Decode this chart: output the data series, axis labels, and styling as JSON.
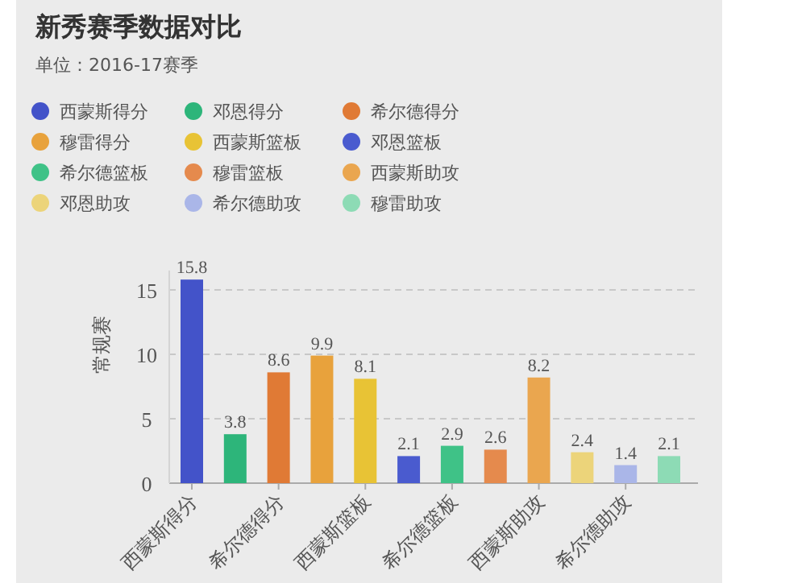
{
  "chart_data": {
    "type": "bar",
    "title": "新秀赛季数据对比",
    "subtitle": "单位：2016-17赛季",
    "ylabel": "常规赛",
    "categories": [
      "西蒙斯得分",
      null,
      "希尔德得分",
      null,
      "西蒙斯篮板",
      null,
      "希尔德篮板",
      null,
      "西蒙斯助攻",
      null,
      "希尔德助攻",
      null
    ],
    "series": [
      {
        "name": "西蒙斯得分",
        "color": "#4353c9",
        "values": [
          15.8,
          null,
          null,
          null,
          null,
          null,
          null,
          null,
          null,
          null,
          null,
          null
        ]
      },
      {
        "name": "邓恩得分",
        "color": "#2db57a",
        "values": [
          null,
          3.8,
          null,
          null,
          null,
          null,
          null,
          null,
          null,
          null,
          null,
          null
        ]
      },
      {
        "name": "希尔德得分",
        "color": "#e07a35",
        "values": [
          null,
          null,
          8.6,
          null,
          null,
          null,
          null,
          null,
          null,
          null,
          null,
          null
        ]
      },
      {
        "name": "穆雷得分",
        "color": "#e8a23c",
        "values": [
          null,
          null,
          null,
          9.9,
          null,
          null,
          null,
          null,
          null,
          null,
          null,
          null
        ]
      },
      {
        "name": "西蒙斯篮板",
        "color": "#e8c335",
        "values": [
          null,
          null,
          null,
          null,
          8.1,
          null,
          null,
          null,
          null,
          null,
          null,
          null
        ]
      },
      {
        "name": "邓恩篮板",
        "color": "#4a5bcf",
        "values": [
          null,
          null,
          null,
          null,
          null,
          2.1,
          null,
          null,
          null,
          null,
          null,
          null
        ]
      },
      {
        "name": "希尔德篮板",
        "color": "#3fc287",
        "values": [
          null,
          null,
          null,
          null,
          null,
          null,
          2.9,
          null,
          null,
          null,
          null,
          null
        ]
      },
      {
        "name": "穆雷篮板",
        "color": "#e58a4d",
        "values": [
          null,
          null,
          null,
          null,
          null,
          null,
          null,
          2.6,
          null,
          null,
          null,
          null
        ]
      },
      {
        "name": "西蒙斯助攻",
        "color": "#eaa64f",
        "values": [
          null,
          null,
          null,
          null,
          null,
          null,
          null,
          null,
          8.2,
          null,
          null,
          null
        ]
      },
      {
        "name": "邓恩助攻",
        "color": "#ecd47a",
        "values": [
          null,
          null,
          null,
          null,
          null,
          null,
          null,
          null,
          null,
          2.4,
          null,
          null
        ]
      },
      {
        "name": "希尔德助攻",
        "color": "#aab6e8",
        "values": [
          null,
          null,
          null,
          null,
          null,
          null,
          null,
          null,
          null,
          null,
          1.4,
          null
        ]
      },
      {
        "name": "穆雷助攻",
        "color": "#8ddbb5",
        "values": [
          null,
          null,
          null,
          null,
          null,
          null,
          null,
          null,
          null,
          null,
          null,
          2.1
        ]
      }
    ],
    "ylim": [
      0,
      16.5
    ],
    "yticks": [
      0,
      5,
      10,
      15
    ],
    "grid": "y",
    "legend": "top",
    "data_labels": true
  }
}
